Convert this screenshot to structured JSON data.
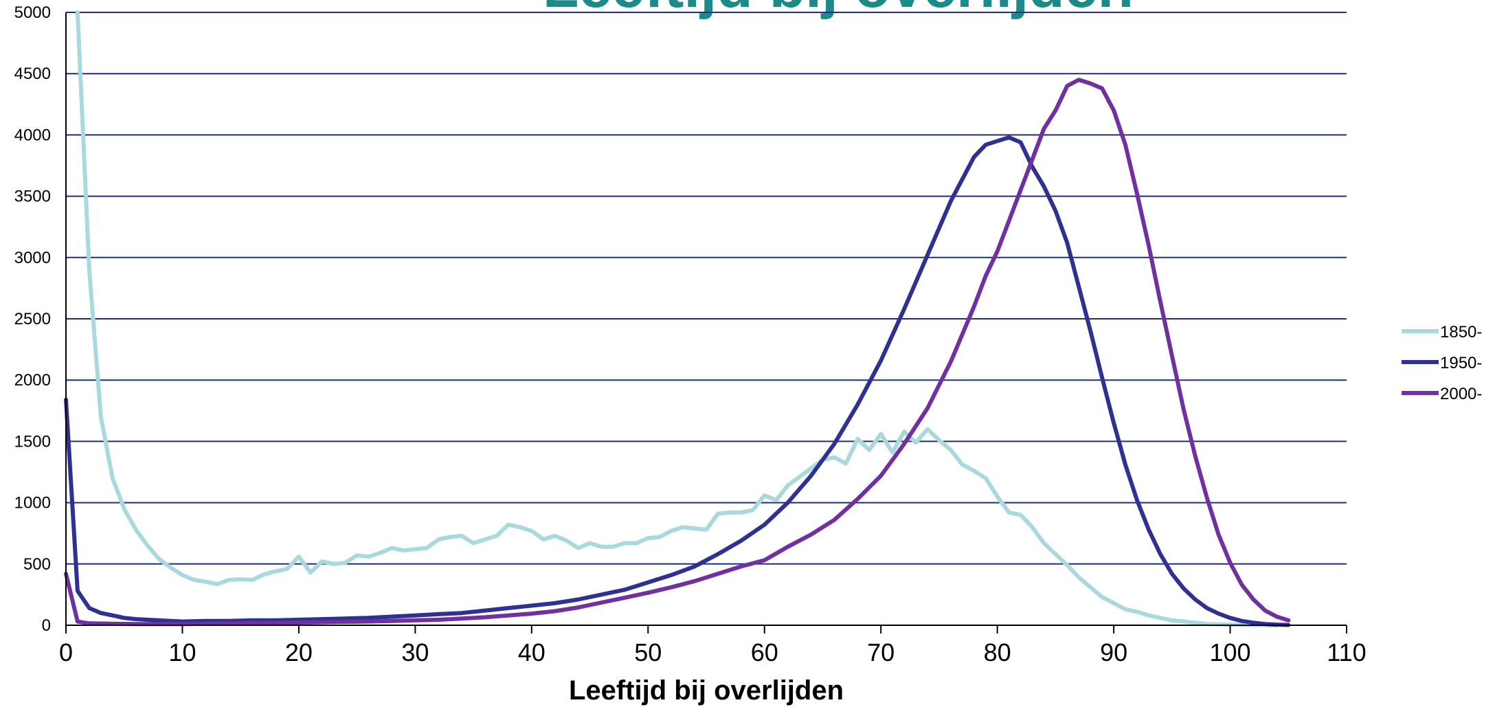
{
  "chart_data": {
    "type": "line",
    "title": "Leeftijd bij overlijden",
    "xlabel": "Leeftijd bij overlijden",
    "ylabel": "",
    "xlim": [
      0,
      110
    ],
    "ylim": [
      0,
      5000
    ],
    "xticks": [
      "0",
      "10",
      "20",
      "30",
      "40",
      "50",
      "60",
      "70",
      "80",
      "90",
      "100",
      "110"
    ],
    "yticks": [
      "0",
      "500",
      "1000",
      "1500",
      "2000",
      "2500",
      "3000",
      "3500",
      "4000",
      "4500",
      "5000"
    ],
    "grid": true,
    "legend_position": "right",
    "colors": {
      "title": "#1a8a8a",
      "grid": "#1f2f7a"
    },
    "series": [
      {
        "name": "1850-",
        "color": "#a9d9dc",
        "points": [
          [
            1,
            5000
          ],
          [
            2,
            2900
          ],
          [
            3,
            1700
          ],
          [
            4,
            1200
          ],
          [
            5,
            950
          ],
          [
            6,
            780
          ],
          [
            7,
            650
          ],
          [
            8,
            540
          ],
          [
            9,
            470
          ],
          [
            10,
            410
          ],
          [
            11,
            370
          ],
          [
            12,
            355
          ],
          [
            13,
            335
          ],
          [
            14,
            370
          ],
          [
            15,
            375
          ],
          [
            16,
            370
          ],
          [
            17,
            415
          ],
          [
            18,
            440
          ],
          [
            19,
            460
          ],
          [
            20,
            560
          ],
          [
            21,
            430
          ],
          [
            22,
            520
          ],
          [
            23,
            500
          ],
          [
            24,
            510
          ],
          [
            25,
            570
          ],
          [
            26,
            560
          ],
          [
            27,
            590
          ],
          [
            28,
            630
          ],
          [
            29,
            610
          ],
          [
            30,
            620
          ],
          [
            31,
            630
          ],
          [
            32,
            700
          ],
          [
            33,
            720
          ],
          [
            34,
            730
          ],
          [
            35,
            670
          ],
          [
            36,
            700
          ],
          [
            37,
            730
          ],
          [
            38,
            820
          ],
          [
            39,
            800
          ],
          [
            40,
            770
          ],
          [
            41,
            700
          ],
          [
            42,
            730
          ],
          [
            43,
            690
          ],
          [
            44,
            630
          ],
          [
            45,
            670
          ],
          [
            46,
            640
          ],
          [
            47,
            640
          ],
          [
            48,
            670
          ],
          [
            49,
            670
          ],
          [
            50,
            710
          ],
          [
            51,
            720
          ],
          [
            52,
            770
          ],
          [
            53,
            800
          ],
          [
            54,
            790
          ],
          [
            55,
            780
          ],
          [
            56,
            910
          ],
          [
            57,
            920
          ],
          [
            58,
            920
          ],
          [
            59,
            940
          ],
          [
            60,
            1060
          ],
          [
            61,
            1020
          ],
          [
            62,
            1140
          ],
          [
            63,
            1210
          ],
          [
            64,
            1280
          ],
          [
            65,
            1350
          ],
          [
            66,
            1370
          ],
          [
            67,
            1320
          ],
          [
            68,
            1520
          ],
          [
            69,
            1430
          ],
          [
            70,
            1560
          ],
          [
            71,
            1410
          ],
          [
            72,
            1580
          ],
          [
            73,
            1490
          ],
          [
            74,
            1600
          ],
          [
            75,
            1510
          ],
          [
            76,
            1430
          ],
          [
            77,
            1310
          ],
          [
            78,
            1260
          ],
          [
            79,
            1200
          ],
          [
            80,
            1050
          ],
          [
            81,
            920
          ],
          [
            82,
            900
          ],
          [
            83,
            800
          ],
          [
            84,
            670
          ],
          [
            85,
            580
          ],
          [
            86,
            490
          ],
          [
            87,
            390
          ],
          [
            88,
            310
          ],
          [
            89,
            230
          ],
          [
            90,
            180
          ],
          [
            91,
            130
          ],
          [
            92,
            110
          ],
          [
            93,
            80
          ],
          [
            94,
            60
          ],
          [
            95,
            40
          ],
          [
            96,
            30
          ],
          [
            97,
            20
          ],
          [
            98,
            10
          ],
          [
            99,
            8
          ],
          [
            100,
            5
          ],
          [
            101,
            3
          ],
          [
            102,
            2
          ],
          [
            103,
            1
          ],
          [
            104,
            0
          ]
        ]
      },
      {
        "name": "1950-",
        "color": "#2e3192",
        "points": [
          [
            0,
            1840
          ],
          [
            1,
            280
          ],
          [
            2,
            140
          ],
          [
            3,
            100
          ],
          [
            4,
            80
          ],
          [
            5,
            60
          ],
          [
            6,
            50
          ],
          [
            7,
            45
          ],
          [
            8,
            40
          ],
          [
            9,
            35
          ],
          [
            10,
            30
          ],
          [
            12,
            35
          ],
          [
            14,
            35
          ],
          [
            16,
            40
          ],
          [
            18,
            40
          ],
          [
            20,
            45
          ],
          [
            22,
            50
          ],
          [
            24,
            55
          ],
          [
            26,
            60
          ],
          [
            28,
            70
          ],
          [
            30,
            80
          ],
          [
            32,
            90
          ],
          [
            34,
            100
          ],
          [
            36,
            120
          ],
          [
            38,
            140
          ],
          [
            40,
            160
          ],
          [
            42,
            180
          ],
          [
            44,
            210
          ],
          [
            46,
            250
          ],
          [
            48,
            290
          ],
          [
            50,
            350
          ],
          [
            52,
            410
          ],
          [
            54,
            480
          ],
          [
            56,
            580
          ],
          [
            58,
            690
          ],
          [
            60,
            820
          ],
          [
            62,
            1000
          ],
          [
            64,
            1220
          ],
          [
            66,
            1480
          ],
          [
            68,
            1800
          ],
          [
            70,
            2160
          ],
          [
            72,
            2580
          ],
          [
            74,
            3020
          ],
          [
            76,
            3460
          ],
          [
            78,
            3820
          ],
          [
            79,
            3920
          ],
          [
            80,
            3950
          ],
          [
            81,
            3980
          ],
          [
            82,
            3940
          ],
          [
            83,
            3740
          ],
          [
            84,
            3580
          ],
          [
            85,
            3380
          ],
          [
            86,
            3120
          ],
          [
            87,
            2760
          ],
          [
            88,
            2400
          ],
          [
            89,
            2020
          ],
          [
            90,
            1650
          ],
          [
            91,
            1310
          ],
          [
            92,
            1020
          ],
          [
            93,
            780
          ],
          [
            94,
            580
          ],
          [
            95,
            420
          ],
          [
            96,
            300
          ],
          [
            97,
            210
          ],
          [
            98,
            140
          ],
          [
            99,
            95
          ],
          [
            100,
            60
          ],
          [
            101,
            35
          ],
          [
            102,
            20
          ],
          [
            103,
            10
          ],
          [
            104,
            5
          ],
          [
            105,
            2
          ]
        ]
      },
      {
        "name": "2000-",
        "color": "#7030a0",
        "points": [
          [
            0,
            420
          ],
          [
            1,
            30
          ],
          [
            2,
            15
          ],
          [
            4,
            12
          ],
          [
            6,
            10
          ],
          [
            8,
            10
          ],
          [
            10,
            10
          ],
          [
            12,
            12
          ],
          [
            14,
            15
          ],
          [
            16,
            18
          ],
          [
            18,
            20
          ],
          [
            20,
            22
          ],
          [
            22,
            25
          ],
          [
            24,
            28
          ],
          [
            26,
            30
          ],
          [
            28,
            35
          ],
          [
            30,
            40
          ],
          [
            32,
            45
          ],
          [
            34,
            55
          ],
          [
            36,
            65
          ],
          [
            38,
            80
          ],
          [
            40,
            95
          ],
          [
            42,
            115
          ],
          [
            44,
            145
          ],
          [
            46,
            185
          ],
          [
            48,
            225
          ],
          [
            50,
            265
          ],
          [
            52,
            310
          ],
          [
            54,
            360
          ],
          [
            56,
            420
          ],
          [
            58,
            480
          ],
          [
            60,
            530
          ],
          [
            62,
            640
          ],
          [
            64,
            740
          ],
          [
            66,
            860
          ],
          [
            68,
            1030
          ],
          [
            70,
            1220
          ],
          [
            72,
            1480
          ],
          [
            74,
            1770
          ],
          [
            76,
            2150
          ],
          [
            78,
            2600
          ],
          [
            79,
            2850
          ],
          [
            80,
            3050
          ],
          [
            81,
            3300
          ],
          [
            82,
            3550
          ],
          [
            83,
            3800
          ],
          [
            84,
            4050
          ],
          [
            85,
            4200
          ],
          [
            86,
            4400
          ],
          [
            87,
            4450
          ],
          [
            88,
            4420
          ],
          [
            89,
            4380
          ],
          [
            90,
            4200
          ],
          [
            91,
            3920
          ],
          [
            92,
            3520
          ],
          [
            93,
            3100
          ],
          [
            94,
            2640
          ],
          [
            95,
            2200
          ],
          [
            96,
            1760
          ],
          [
            97,
            1380
          ],
          [
            98,
            1040
          ],
          [
            99,
            740
          ],
          [
            100,
            510
          ],
          [
            101,
            330
          ],
          [
            102,
            210
          ],
          [
            103,
            120
          ],
          [
            104,
            70
          ],
          [
            105,
            40
          ]
        ]
      }
    ]
  }
}
